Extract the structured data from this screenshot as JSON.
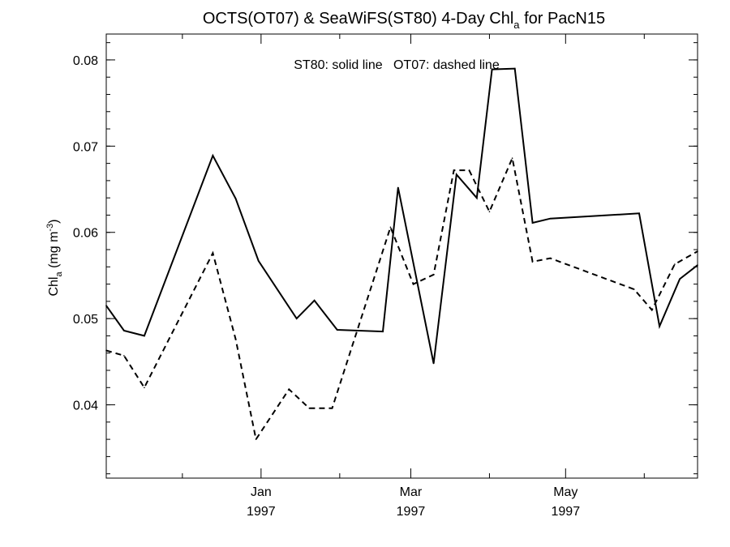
{
  "chart_data": {
    "type": "line",
    "title": "OCTS(OT07) & SeaWiFS(ST80) 4-Day Chl",
    "title_subscript": "a",
    "title_suffix": " for PacN15",
    "annotation": "ST80: solid line   OT07: dashed line",
    "ylabel_main": "Chl",
    "ylabel_sub": "a",
    "ylabel_units": " (mg m",
    "ylabel_exp": "-3",
    "ylabel_close": ")",
    "xlabel": "",
    "ylim": [
      0.0315,
      0.083
    ],
    "xlim": [
      "1996-11-01",
      "1997-06-22"
    ],
    "y_ticks": [
      {
        "value": 0.04,
        "label": "0.04"
      },
      {
        "value": 0.05,
        "label": "0.05"
      },
      {
        "value": 0.06,
        "label": "0.06"
      },
      {
        "value": 0.07,
        "label": "0.07"
      },
      {
        "value": 0.08,
        "label": "0.08"
      }
    ],
    "x_ticks": [
      {
        "date": "1997-01-01",
        "month": "Jan",
        "year": "1997"
      },
      {
        "date": "1997-03-01",
        "month": "Mar",
        "year": "1997"
      },
      {
        "date": "1997-05-01",
        "month": "May",
        "year": "1997"
      }
    ],
    "x_minor_ticks": [
      "1996-12-01",
      "1997-02-01",
      "1997-04-01",
      "1997-06-01"
    ],
    "series": [
      {
        "name": "ST80",
        "style": "solid",
        "points": [
          {
            "x": "1996-11-01",
            "y": 0.0515
          },
          {
            "x": "1996-11-08",
            "y": 0.0486
          },
          {
            "x": "1996-11-16",
            "y": 0.048
          },
          {
            "x": "1996-12-13",
            "y": 0.0689
          },
          {
            "x": "1996-12-22",
            "y": 0.0639
          },
          {
            "x": "1996-12-31",
            "y": 0.0567
          },
          {
            "x": "1997-01-15",
            "y": 0.05
          },
          {
            "x": "1997-01-22",
            "y": 0.0521
          },
          {
            "x": "1997-01-31",
            "y": 0.0487
          },
          {
            "x": "1997-02-18",
            "y": 0.0485
          },
          {
            "x": "1997-02-24",
            "y": 0.0652
          },
          {
            "x": "1997-03-10",
            "y": 0.0448
          },
          {
            "x": "1997-03-19",
            "y": 0.0667
          },
          {
            "x": "1997-03-27",
            "y": 0.064
          },
          {
            "x": "1997-04-02",
            "y": 0.0789
          },
          {
            "x": "1997-04-11",
            "y": 0.079
          },
          {
            "x": "1997-04-18",
            "y": 0.0611
          },
          {
            "x": "1997-04-25",
            "y": 0.0616
          },
          {
            "x": "1997-05-30",
            "y": 0.0622
          },
          {
            "x": "1997-06-07",
            "y": 0.0491
          },
          {
            "x": "1997-06-15",
            "y": 0.0546
          },
          {
            "x": "1997-06-22",
            "y": 0.0562
          }
        ]
      },
      {
        "name": "OT07",
        "style": "dashed",
        "points": [
          {
            "x": "1996-11-01",
            "y": 0.0463
          },
          {
            "x": "1996-11-08",
            "y": 0.0457
          },
          {
            "x": "1996-11-16",
            "y": 0.042
          },
          {
            "x": "1996-12-13",
            "y": 0.0576
          },
          {
            "x": "1996-12-22",
            "y": 0.0476
          },
          {
            "x": "1996-12-30",
            "y": 0.036
          },
          {
            "x": "1997-01-12",
            "y": 0.0418
          },
          {
            "x": "1997-01-20",
            "y": 0.0396
          },
          {
            "x": "1997-01-29",
            "y": 0.0396
          },
          {
            "x": "1997-02-21",
            "y": 0.0606
          },
          {
            "x": "1997-03-02",
            "y": 0.054
          },
          {
            "x": "1997-03-10",
            "y": 0.0551
          },
          {
            "x": "1997-03-18",
            "y": 0.0672
          },
          {
            "x": "1997-03-24",
            "y": 0.0672
          },
          {
            "x": "1997-04-01",
            "y": 0.0624
          },
          {
            "x": "1997-04-10",
            "y": 0.0686
          },
          {
            "x": "1997-04-18",
            "y": 0.0566
          },
          {
            "x": "1997-04-25",
            "y": 0.057
          },
          {
            "x": "1997-05-28",
            "y": 0.0534
          },
          {
            "x": "1997-06-04",
            "y": 0.051
          },
          {
            "x": "1997-06-13",
            "y": 0.0563
          },
          {
            "x": "1997-06-22",
            "y": 0.0578
          }
        ]
      }
    ],
    "colors": {
      "line": "#000000",
      "background": "#ffffff"
    }
  }
}
